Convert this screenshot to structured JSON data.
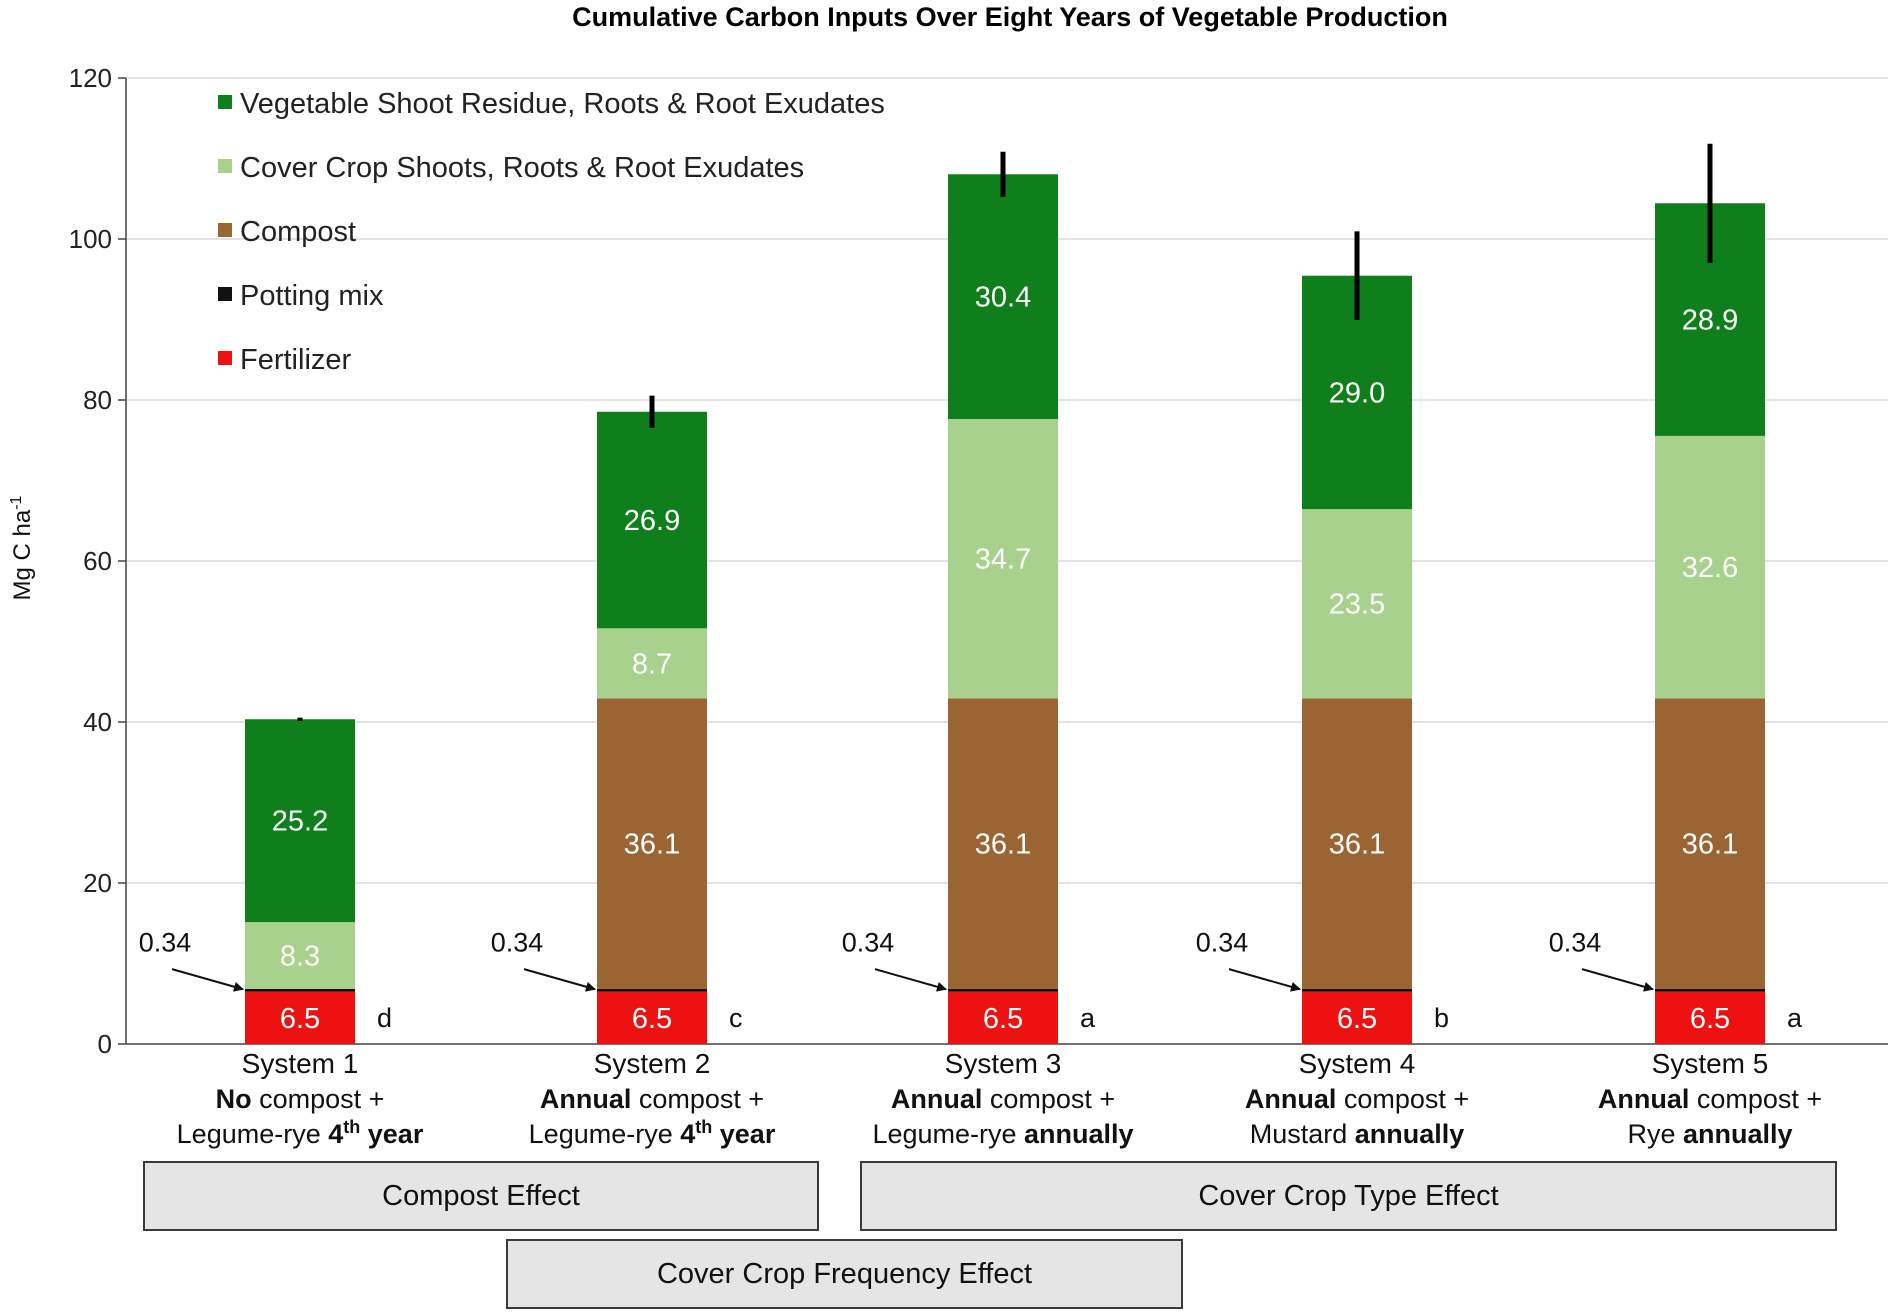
{
  "chart_data": {
    "type": "bar",
    "stacked": true,
    "title": "Cumulative Carbon Inputs Over Eight Years of Vegetable Production",
    "ylabel": "Mg C ha",
    "ylabel_superscript": "-1",
    "ylim": [
      0,
      120
    ],
    "yticks": [
      0,
      20,
      40,
      60,
      80,
      100,
      120
    ],
    "grid": true,
    "legend_position": "top-left",
    "categories": [
      {
        "name": "System 1",
        "desc": [
          [
            {
              "t": "No",
              "b": true
            },
            {
              "t": " compost +",
              "b": false
            }
          ],
          [
            {
              "t": "Legume-rye ",
              "b": false
            },
            {
              "t": "4",
              "b": true
            },
            {
              "t": "th",
              "b": true,
              "sup": true
            },
            {
              "t": " year",
              "b": true
            }
          ]
        ]
      },
      {
        "name": "System 2",
        "desc": [
          [
            {
              "t": "Annual",
              "b": true
            },
            {
              "t": " compost +",
              "b": false
            }
          ],
          [
            {
              "t": "Legume-rye ",
              "b": false
            },
            {
              "t": "4",
              "b": true
            },
            {
              "t": "th",
              "b": true,
              "sup": true
            },
            {
              "t": " year",
              "b": true
            }
          ]
        ]
      },
      {
        "name": "System 3",
        "desc": [
          [
            {
              "t": "Annual",
              "b": true
            },
            {
              "t": " compost +",
              "b": false
            }
          ],
          [
            {
              "t": "Legume-rye ",
              "b": false
            },
            {
              "t": "annually",
              "b": true
            }
          ]
        ]
      },
      {
        "name": "System 4",
        "desc": [
          [
            {
              "t": "Annual",
              "b": true
            },
            {
              "t": " compost +",
              "b": false
            }
          ],
          [
            {
              "t": "Mustard ",
              "b": false
            },
            {
              "t": "annually",
              "b": true
            }
          ]
        ]
      },
      {
        "name": "System 5",
        "desc": [
          [
            {
              "t": "Annual",
              "b": true
            },
            {
              "t": " compost +",
              "b": false
            }
          ],
          [
            {
              "t": "Rye ",
              "b": false
            },
            {
              "t": "annually",
              "b": true
            }
          ]
        ]
      }
    ],
    "series": [
      {
        "name": "Fertilizer",
        "color": "#ee1111",
        "values": [
          6.5,
          6.5,
          6.5,
          6.5,
          6.5
        ],
        "labels": [
          "6.5",
          "6.5",
          "6.5",
          "6.5",
          "6.5"
        ]
      },
      {
        "name": "Potting mix",
        "color": "#111111",
        "values": [
          0.34,
          0.34,
          0.34,
          0.34,
          0.34
        ],
        "labels": [
          "0.34",
          "0.34",
          "0.34",
          "0.34",
          "0.34"
        ]
      },
      {
        "name": "Compost",
        "color": "#9b6433",
        "values": [
          0,
          36.1,
          36.1,
          36.1,
          36.1
        ],
        "labels": [
          "",
          "36.1",
          "36.1",
          "36.1",
          "36.1"
        ]
      },
      {
        "name": "Cover Crop Shoots, Roots & Root Exudates",
        "color": "#a8d18d",
        "values": [
          8.3,
          8.7,
          34.7,
          23.5,
          32.6
        ],
        "labels": [
          "8.3",
          "8.7",
          "34.7",
          "23.5",
          "32.6"
        ]
      },
      {
        "name": "Vegetable Shoot Residue, Roots & Root Exudates",
        "color": "#0f7f1c",
        "values": [
          25.2,
          26.9,
          30.4,
          29.0,
          28.9
        ],
        "labels": [
          "25.2",
          "26.9",
          "30.4",
          "29.0",
          "28.9"
        ]
      }
    ],
    "legend_order": [
      4,
      3,
      2,
      1,
      0
    ],
    "error_bars": [
      0.2,
      2.0,
      2.8,
      5.5,
      7.4
    ],
    "significance_letters": [
      "d",
      "c",
      "a",
      "b",
      "a"
    ],
    "effects": [
      {
        "label": "Compost Effect",
        "systems": [
          1,
          2
        ]
      },
      {
        "label": "Cover Crop Type Effect",
        "systems": [
          3,
          4,
          5
        ]
      },
      {
        "label": "Cover Crop Frequency Effect",
        "systems": [
          2,
          3
        ]
      }
    ]
  }
}
